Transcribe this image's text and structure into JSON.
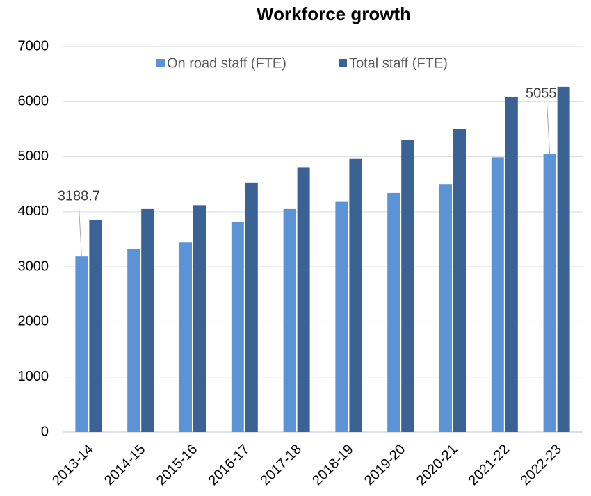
{
  "chart_data": {
    "type": "bar",
    "title": "Workforce growth",
    "categories": [
      "2013-14",
      "2014-15",
      "2015-16",
      "2016-17",
      "2017-18",
      "2018-19",
      "2019-20",
      "2020-21",
      "2021-22",
      "2022-23"
    ],
    "series": [
      {
        "name": "On road staff (FTE)",
        "color": "#5b93d6",
        "values": [
          3188.7,
          3330,
          3440,
          3810,
          4050,
          4180,
          4340,
          4500,
          4990,
          5055.4
        ],
        "value_labels": [
          "3188.7",
          null,
          null,
          null,
          null,
          null,
          null,
          null,
          null,
          "5055.4"
        ]
      },
      {
        "name": "Total staff (FTE)",
        "color": "#3a6294",
        "values": [
          3850,
          4050,
          4120,
          4530,
          4800,
          4960,
          5310,
          5510,
          6090,
          6270
        ]
      }
    ],
    "ylim": [
      0,
      7000
    ],
    "yticks": [
      0,
      1000,
      2000,
      3000,
      4000,
      5000,
      6000,
      7000
    ],
    "grid": true,
    "legend": "top"
  }
}
